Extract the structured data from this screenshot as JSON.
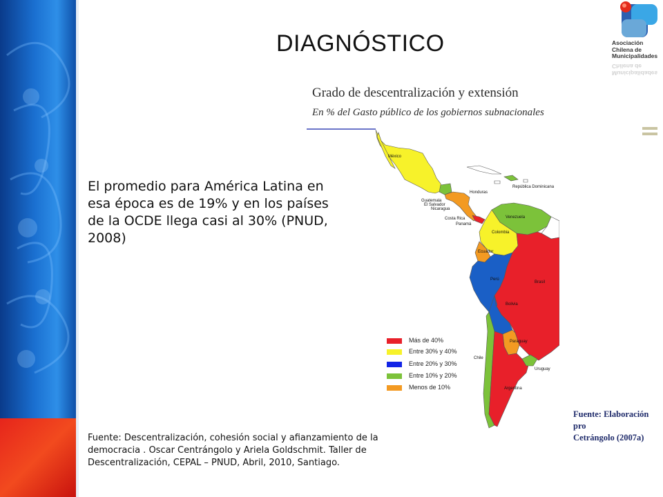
{
  "slide": {
    "title": "DIAGNÓSTICO"
  },
  "logo": {
    "lines": [
      "Asociación",
      "Chilena de",
      "Municipalidades"
    ]
  },
  "map": {
    "title": "Grado de descentralización y extensión",
    "subtitle": "En % del Gasto público de los gobiernos subnacionales",
    "source_lines": [
      "Fuente: Elaboración pro",
      "Cetrángolo (2007a)"
    ],
    "country_labels": [
      "México",
      "Honduras",
      "República Dominicana",
      "Guatemala",
      "El Salvador",
      "Nicaragua",
      "Costa Rica",
      "Panamá",
      "Venezuela",
      "Colombia",
      "Ecuador",
      "Perú",
      "Bolivia",
      "Brasil",
      "Paraguay",
      "Chile",
      "Argentina",
      "Uruguay"
    ],
    "legend": [
      {
        "label": "Más de 40%",
        "color": "#e8202a"
      },
      {
        "label": "Entre 30% y 40%",
        "color": "#f7f22a"
      },
      {
        "label": "Entre 20% y 30%",
        "color": "#1224e6"
      },
      {
        "label": "Entre 10% y 20%",
        "color": "#7cc23a"
      },
      {
        "label": "Menos de 10%",
        "color": "#f39a22"
      }
    ]
  },
  "body_text": "El promedio para América Latina en esa época es de 19% y en los países de la OCDE llega casi al 30% (PNUD, 2008)",
  "citation": "Fuente: Descentralización, cohesión social y afianzamiento de la democracia . Oscar Centrángolo y Ariela Goldschmit. Taller de Descentralización, CEPAL – PNUD, Abril, 2010, Santiago."
}
